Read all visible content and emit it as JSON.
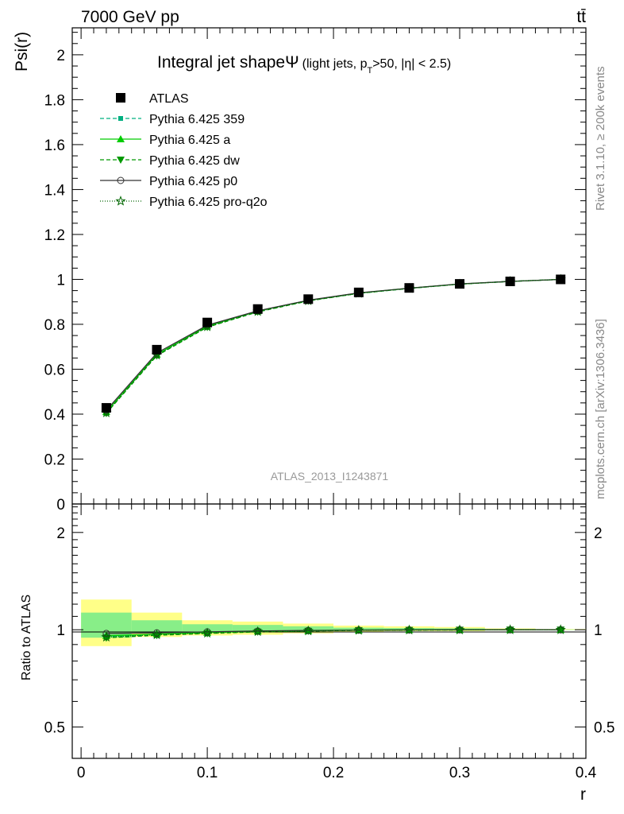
{
  "header": {
    "left": "7000 GeV pp",
    "right": "tt̄"
  },
  "side": {
    "rivet": "Rivet 3.1.10, ≥ 200k events",
    "mcplots": "mcplots.cern.ch [arXiv:1306.3436]"
  },
  "title": {
    "main": "Integral jet shape",
    "psi": "Ψ",
    "sub_a": "(light jets, p",
    "sub_T": "T",
    "sub_b": ">50, |η| < 2.5)"
  },
  "watermark": "ATLAS_2013_I1243871",
  "chart_data": [
    {
      "type": "line",
      "title": "Integral jet shape Ψ (light jets, pT>50, |η| < 2.5)",
      "xlabel": "r",
      "ylabel": "Psi(r)",
      "xlim": [
        -0.007,
        0.4
      ],
      "ylim": [
        0,
        2.12
      ],
      "x": [
        0.02,
        0.06,
        0.1,
        0.14,
        0.18,
        0.22,
        0.26,
        0.3,
        0.34,
        0.38
      ],
      "xticks": [
        {
          "v": 0,
          "label": "0"
        },
        {
          "v": 0.1,
          "label": "0.1"
        },
        {
          "v": 0.2,
          "label": "0.2"
        },
        {
          "v": 0.3,
          "label": "0.3"
        },
        {
          "v": 0.4,
          "label": "0.4"
        }
      ],
      "yticks": [
        {
          "v": 0,
          "label": "0"
        },
        {
          "v": 0.2,
          "label": "0.2"
        },
        {
          "v": 0.4,
          "label": "0.4"
        },
        {
          "v": 0.6,
          "label": "0.6"
        },
        {
          "v": 0.8,
          "label": "0.8"
        },
        {
          "v": 1.0,
          "label": "1"
        },
        {
          "v": 1.2,
          "label": "1.2"
        },
        {
          "v": 1.4,
          "label": "1.4"
        },
        {
          "v": 1.6,
          "label": "1.6"
        },
        {
          "v": 1.8,
          "label": "1.8"
        },
        {
          "v": 2.0,
          "label": "2"
        }
      ],
      "series": [
        {
          "name": "ATLAS",
          "marker": "square",
          "color": "#000000",
          "dash": "none",
          "values": [
            0.428,
            0.687,
            0.808,
            0.868,
            0.912,
            0.942,
            0.962,
            0.98,
            0.991,
            1.0
          ]
        },
        {
          "name": "Pythia 6.425 359",
          "marker": "smallsquare",
          "color": "#00b080",
          "dash": "5,3",
          "values": [
            0.408,
            0.664,
            0.79,
            0.857,
            0.905,
            0.938,
            0.96,
            0.979,
            0.991,
            1.0
          ]
        },
        {
          "name": "Pythia 6.425 a",
          "marker": "triangle-up",
          "color": "#00cc00",
          "dash": "none",
          "values": [
            0.41,
            0.666,
            0.792,
            0.859,
            0.906,
            0.939,
            0.961,
            0.979,
            0.991,
            1.0
          ]
        },
        {
          "name": "Pythia 6.425 dw",
          "marker": "triangle-down",
          "color": "#009900",
          "dash": "5,3",
          "values": [
            0.404,
            0.66,
            0.787,
            0.855,
            0.904,
            0.938,
            0.96,
            0.979,
            0.991,
            1.0
          ]
        },
        {
          "name": "Pythia 6.425 p0",
          "marker": "circle-open",
          "color": "#333333",
          "dash": "none",
          "values": [
            0.417,
            0.672,
            0.796,
            0.86,
            0.907,
            0.94,
            0.961,
            0.98,
            0.991,
            1.0
          ]
        },
        {
          "name": "Pythia 6.425 pro-q2o",
          "marker": "star-open",
          "color": "#006600",
          "dash": "1,2",
          "values": [
            0.406,
            0.663,
            0.789,
            0.857,
            0.905,
            0.938,
            0.96,
            0.979,
            0.991,
            1.0
          ]
        }
      ]
    },
    {
      "type": "line",
      "title": "",
      "xlabel": "r",
      "ylabel": "Ratio to ATLAS",
      "scale": "log",
      "xlim": [
        -0.007,
        0.4
      ],
      "ylim": [
        0.4,
        2.45
      ],
      "x": [
        0.02,
        0.06,
        0.1,
        0.14,
        0.18,
        0.22,
        0.26,
        0.3,
        0.34,
        0.38
      ],
      "yticks": [
        {
          "v": 0.5,
          "label": "0.5"
        },
        {
          "v": 1.0,
          "label": "1"
        },
        {
          "v": 2.0,
          "label": "2"
        }
      ],
      "bands": {
        "edges": [
          0.0,
          0.04,
          0.08,
          0.12,
          0.16,
          0.2,
          0.24,
          0.28,
          0.32,
          0.36,
          0.4
        ],
        "yellow": [
          [
            0.89,
            1.24
          ],
          [
            0.95,
            1.13
          ],
          [
            0.96,
            1.07
          ],
          [
            0.965,
            1.06
          ],
          [
            0.975,
            1.045
          ],
          [
            0.985,
            1.03
          ],
          [
            0.99,
            1.025
          ],
          [
            0.99,
            1.02
          ],
          [
            0.995,
            1.01
          ],
          [
            0.998,
            1.005
          ]
        ],
        "green": [
          [
            0.945,
            1.13
          ],
          [
            0.975,
            1.07
          ],
          [
            0.98,
            1.04
          ],
          [
            0.985,
            1.035
          ],
          [
            0.99,
            1.025
          ],
          [
            0.993,
            1.015
          ],
          [
            0.995,
            1.012
          ],
          [
            0.995,
            1.01
          ],
          [
            0.997,
            1.005
          ],
          [
            0.999,
            1.002
          ]
        ]
      },
      "series": [
        {
          "name": "Pythia 6.425 359",
          "values": [
            0.953,
            0.966,
            0.978,
            0.987,
            0.992,
            0.996,
            0.998,
            0.999,
            1.0,
            1.0
          ]
        },
        {
          "name": "Pythia 6.425 a",
          "values": [
            0.958,
            0.969,
            0.98,
            0.99,
            0.993,
            0.997,
            0.999,
            0.999,
            1.0,
            1.0
          ]
        },
        {
          "name": "Pythia 6.425 dw",
          "values": [
            0.944,
            0.961,
            0.974,
            0.985,
            0.991,
            0.996,
            0.998,
            0.999,
            1.0,
            1.0
          ]
        },
        {
          "name": "Pythia 6.425 p0",
          "values": [
            0.974,
            0.978,
            0.985,
            0.991,
            0.995,
            0.998,
            0.999,
            1.0,
            1.0,
            1.0
          ]
        },
        {
          "name": "Pythia 6.425 pro-q2o",
          "values": [
            0.949,
            0.965,
            0.976,
            0.987,
            0.992,
            0.996,
            0.998,
            0.999,
            1.0,
            1.0
          ]
        }
      ]
    }
  ]
}
